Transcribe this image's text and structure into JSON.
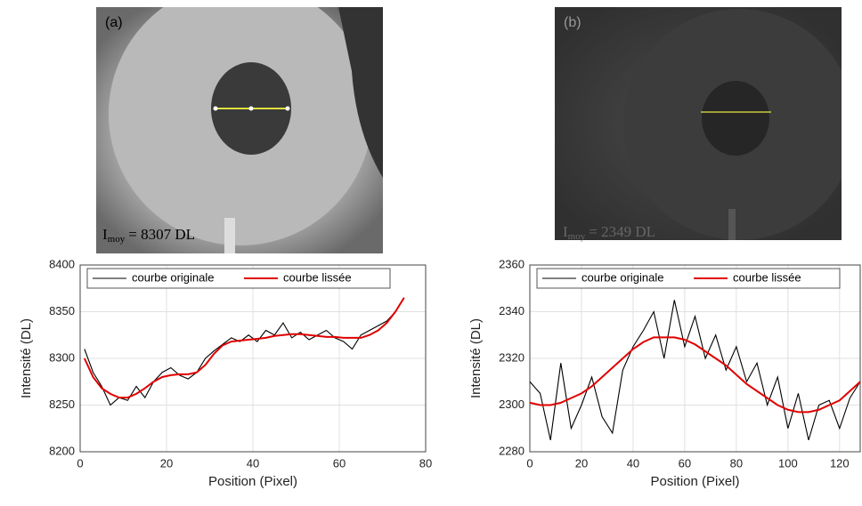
{
  "images": [
    {
      "label": "(a)",
      "annotation": {
        "symbol": "I",
        "subscript": "moy",
        "text": "= 8307 DL"
      }
    },
    {
      "label": "(b)",
      "annotation": {
        "symbol": "I",
        "subscript": "moy",
        "text": "= 2349 DL"
      }
    }
  ],
  "chart_data": [
    {
      "type": "line",
      "x_label": "Position (Pixel)",
      "y_label": "Intensité (DL)",
      "xlim": [
        0,
        80
      ],
      "xticks": [
        0,
        20,
        40,
        60,
        80
      ],
      "ylim": [
        8200,
        8400
      ],
      "yticks": [
        8200,
        8250,
        8300,
        8350,
        8400
      ],
      "grid": true,
      "legend": "top",
      "x": [
        1,
        3,
        5,
        7,
        9,
        11,
        13,
        15,
        17,
        19,
        21,
        23,
        25,
        27,
        29,
        31,
        33,
        35,
        37,
        39,
        41,
        43,
        45,
        47,
        49,
        51,
        53,
        55,
        57,
        59,
        61,
        63,
        65,
        67,
        69,
        71,
        73,
        75
      ],
      "series": [
        {
          "name": "courbe originale",
          "color": "#000000",
          "values": [
            8310,
            8285,
            8270,
            8250,
            8258,
            8255,
            8270,
            8258,
            8275,
            8285,
            8290,
            8282,
            8278,
            8285,
            8300,
            8308,
            8315,
            8322,
            8318,
            8325,
            8318,
            8330,
            8325,
            8338,
            8322,
            8328,
            8320,
            8325,
            8330,
            8322,
            8318,
            8310,
            8325,
            8330,
            8335,
            8340,
            8350,
            8365
          ]
        },
        {
          "name": "courbe lissée",
          "color": "#e00000",
          "values": [
            8300,
            8280,
            8268,
            8262,
            8258,
            8258,
            8262,
            8268,
            8275,
            8280,
            8282,
            8283,
            8283,
            8285,
            8293,
            8305,
            8314,
            8318,
            8319,
            8320,
            8321,
            8322,
            8324,
            8325,
            8326,
            8326,
            8325,
            8324,
            8323,
            8323,
            8322,
            8322,
            8322,
            8325,
            8330,
            8338,
            8350,
            8365
          ]
        }
      ]
    },
    {
      "type": "line",
      "x_label": "Position (Pixel)",
      "y_label": "Intensité (DL)",
      "xlim": [
        0,
        128
      ],
      "xticks": [
        0,
        20,
        40,
        60,
        80,
        100,
        120
      ],
      "ylim": [
        2280,
        2360
      ],
      "yticks": [
        2280,
        2300,
        2320,
        2340,
        2360
      ],
      "grid": true,
      "legend": "top",
      "x": [
        0,
        4,
        8,
        12,
        16,
        20,
        24,
        28,
        32,
        36,
        40,
        44,
        48,
        52,
        56,
        60,
        64,
        68,
        72,
        76,
        80,
        84,
        88,
        92,
        96,
        100,
        104,
        108,
        112,
        116,
        120,
        124,
        128
      ],
      "series": [
        {
          "name": "courbe originale",
          "color": "#000000",
          "values": [
            2310,
            2305,
            2285,
            2318,
            2290,
            2300,
            2312,
            2295,
            2288,
            2315,
            2325,
            2332,
            2340,
            2320,
            2345,
            2325,
            2338,
            2320,
            2330,
            2315,
            2325,
            2310,
            2318,
            2300,
            2312,
            2290,
            2305,
            2285,
            2300,
            2302,
            2290,
            2303,
            2310
          ]
        },
        {
          "name": "courbe lissée",
          "color": "#e00000",
          "values": [
            2301,
            2300,
            2300,
            2301,
            2303,
            2305,
            2308,
            2312,
            2316,
            2320,
            2324,
            2327,
            2329,
            2329,
            2329,
            2328,
            2326,
            2323,
            2320,
            2317,
            2313,
            2309,
            2306,
            2303,
            2300,
            2298,
            2297,
            2297,
            2298,
            2300,
            2302,
            2306,
            2310
          ]
        }
      ]
    }
  ]
}
